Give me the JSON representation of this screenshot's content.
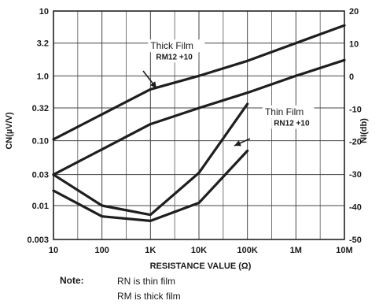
{
  "chart_data": {
    "type": "line",
    "xlabel": "RESISTANCE VALUE (Ω)",
    "ylabel": "CN(µV/V)",
    "y2label": "NI(db)",
    "x_scale": "log",
    "y_scale": "log",
    "xlim": [
      10,
      10000000
    ],
    "ylim": [
      0.003,
      10
    ],
    "y2lim": [
      -50,
      20
    ],
    "grid": true,
    "x_ticks": [
      {
        "value": 10,
        "label": "10"
      },
      {
        "value": 100,
        "label": "100"
      },
      {
        "value": 1000,
        "label": "1K"
      },
      {
        "value": 10000,
        "label": "10K"
      },
      {
        "value": 100000,
        "label": "100K"
      },
      {
        "value": 1000000,
        "label": "1M"
      },
      {
        "value": 10000000,
        "label": "10M"
      }
    ],
    "y_ticks": [
      {
        "value": 10,
        "label": "10"
      },
      {
        "value": 3.2,
        "label": "3.2"
      },
      {
        "value": 1.0,
        "label": "1.0"
      },
      {
        "value": 0.32,
        "label": "0.32"
      },
      {
        "value": 0.1,
        "label": "0.10"
      },
      {
        "value": 0.03,
        "label": "0.03"
      },
      {
        "value": 0.01,
        "label": "0.01"
      },
      {
        "value": 0.003,
        "label": "0.003"
      }
    ],
    "y2_ticks": [
      {
        "value": 20,
        "label": "20"
      },
      {
        "value": 10,
        "label": "10"
      },
      {
        "value": 0,
        "label": "0"
      },
      {
        "value": -10,
        "label": "-10"
      },
      {
        "value": -20,
        "label": "-20"
      },
      {
        "value": -30,
        "label": "-30"
      },
      {
        "value": -40,
        "label": "-40"
      },
      {
        "value": -50,
        "label": "-50"
      }
    ],
    "series": [
      {
        "x": [
          10,
          1000,
          10000,
          100000,
          1000000,
          10000000
        ],
        "y": [
          0.105,
          0.62,
          1.0,
          1.7,
          3.2,
          6.0
        ]
      },
      {
        "x": [
          10,
          1000,
          10000,
          100000,
          1000000,
          10000000
        ],
        "y": [
          0.03,
          0.18,
          0.32,
          0.55,
          1.0,
          1.75
        ]
      },
      {
        "x": [
          10,
          100,
          1000,
          10000,
          100000
        ],
        "y": [
          0.03,
          0.01,
          0.0072,
          0.032,
          0.37
        ]
      },
      {
        "x": [
          10,
          100,
          1000,
          10000,
          100000
        ],
        "y": [
          0.017,
          0.0068,
          0.0058,
          0.011,
          0.07
        ]
      }
    ],
    "annotations": [
      {
        "text": "Thick Film",
        "x": 1000,
        "y": 2.6
      },
      {
        "text": "RM12 +10",
        "x": 1300,
        "y": 1.8
      },
      {
        "text": "Thin Film",
        "x": 230000,
        "y": 0.25
      },
      {
        "text": "RN12 +10",
        "x": 350000,
        "y": 0.17
      }
    ]
  },
  "note": {
    "label": "Note:",
    "lines": [
      "RN is thin film",
      "RM is thick film"
    ]
  }
}
